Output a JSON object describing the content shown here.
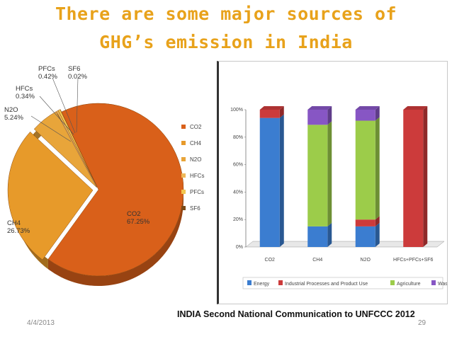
{
  "slide": {
    "title_line1": "There are some major sources of",
    "title_line2": "GHG’s emission in India",
    "source": "INDIA Second National Communication to UNFCCC 2012",
    "date": "4/4/2013",
    "page": "29"
  },
  "colors": {
    "title": "#e8a21b",
    "co2": "#d9601a",
    "ch4": "#e79a2a",
    "n2o": "#e8a53a",
    "hfcs": "#eeb85a",
    "pfcs": "#f2c650",
    "sf6": "#7a4a18",
    "energy": "#3b7dd0",
    "industrial": "#cc3b3b",
    "agriculture": "#9ccc4a",
    "waste": "#8756c4"
  },
  "chart_data": [
    {
      "type": "pie",
      "title": "",
      "slices": [
        {
          "name": "CO2",
          "value": 67.25,
          "label": "CO2\n67.25%"
        },
        {
          "name": "CH4",
          "value": 26.73,
          "label": "CH4\n26.73%"
        },
        {
          "name": "N2O",
          "value": 5.24,
          "label": "N2O\n5.24%"
        },
        {
          "name": "HFCs",
          "value": 0.34,
          "label": "HFCs\n0.34%"
        },
        {
          "name": "PFCs",
          "value": 0.42,
          "label": "PFCs\n0.42%"
        },
        {
          "name": "SF6",
          "value": 0.02,
          "label": "SF6\n0.02%"
        }
      ],
      "legend": [
        "CO2",
        "CH4",
        "N2O",
        "HFCs",
        "PFCs",
        "SF6"
      ],
      "legend_position": "right"
    },
    {
      "type": "bar",
      "stacked": true,
      "categories": [
        "CO2",
        "CH4",
        "N2O",
        "HFCs+PFCs+SF6"
      ],
      "series": [
        {
          "name": "Energy",
          "values": [
            94,
            15,
            15,
            0
          ]
        },
        {
          "name": "Industrial Processes and Product Use",
          "values": [
            6,
            0,
            5,
            100
          ]
        },
        {
          "name": "Agriculture",
          "values": [
            0,
            74,
            72,
            0
          ]
        },
        {
          "name": "Waste",
          "values": [
            0,
            11,
            8,
            0
          ]
        }
      ],
      "ylim": [
        0,
        100
      ],
      "yticks": [
        "0%",
        "20%",
        "40%",
        "60%",
        "80%",
        "100%"
      ],
      "xlabel": "",
      "ylabel": "",
      "legend_position": "bottom",
      "grid": false
    }
  ]
}
